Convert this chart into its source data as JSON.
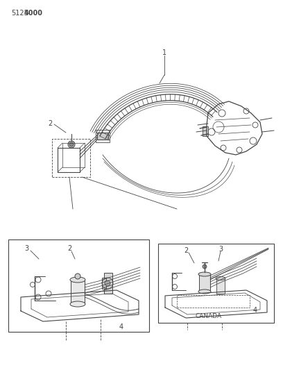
{
  "bg_color": "#ffffff",
  "line_color": "#444444",
  "text_color": "#444444",
  "header_text_1": "5125",
  "header_text_2": "4000",
  "header_fontsize": 7,
  "label_fontsize": 7,
  "canada_text": "CANADA",
  "canada_fontsize": 6.5,
  "figsize": [
    4.08,
    5.33
  ],
  "dpi": 100
}
